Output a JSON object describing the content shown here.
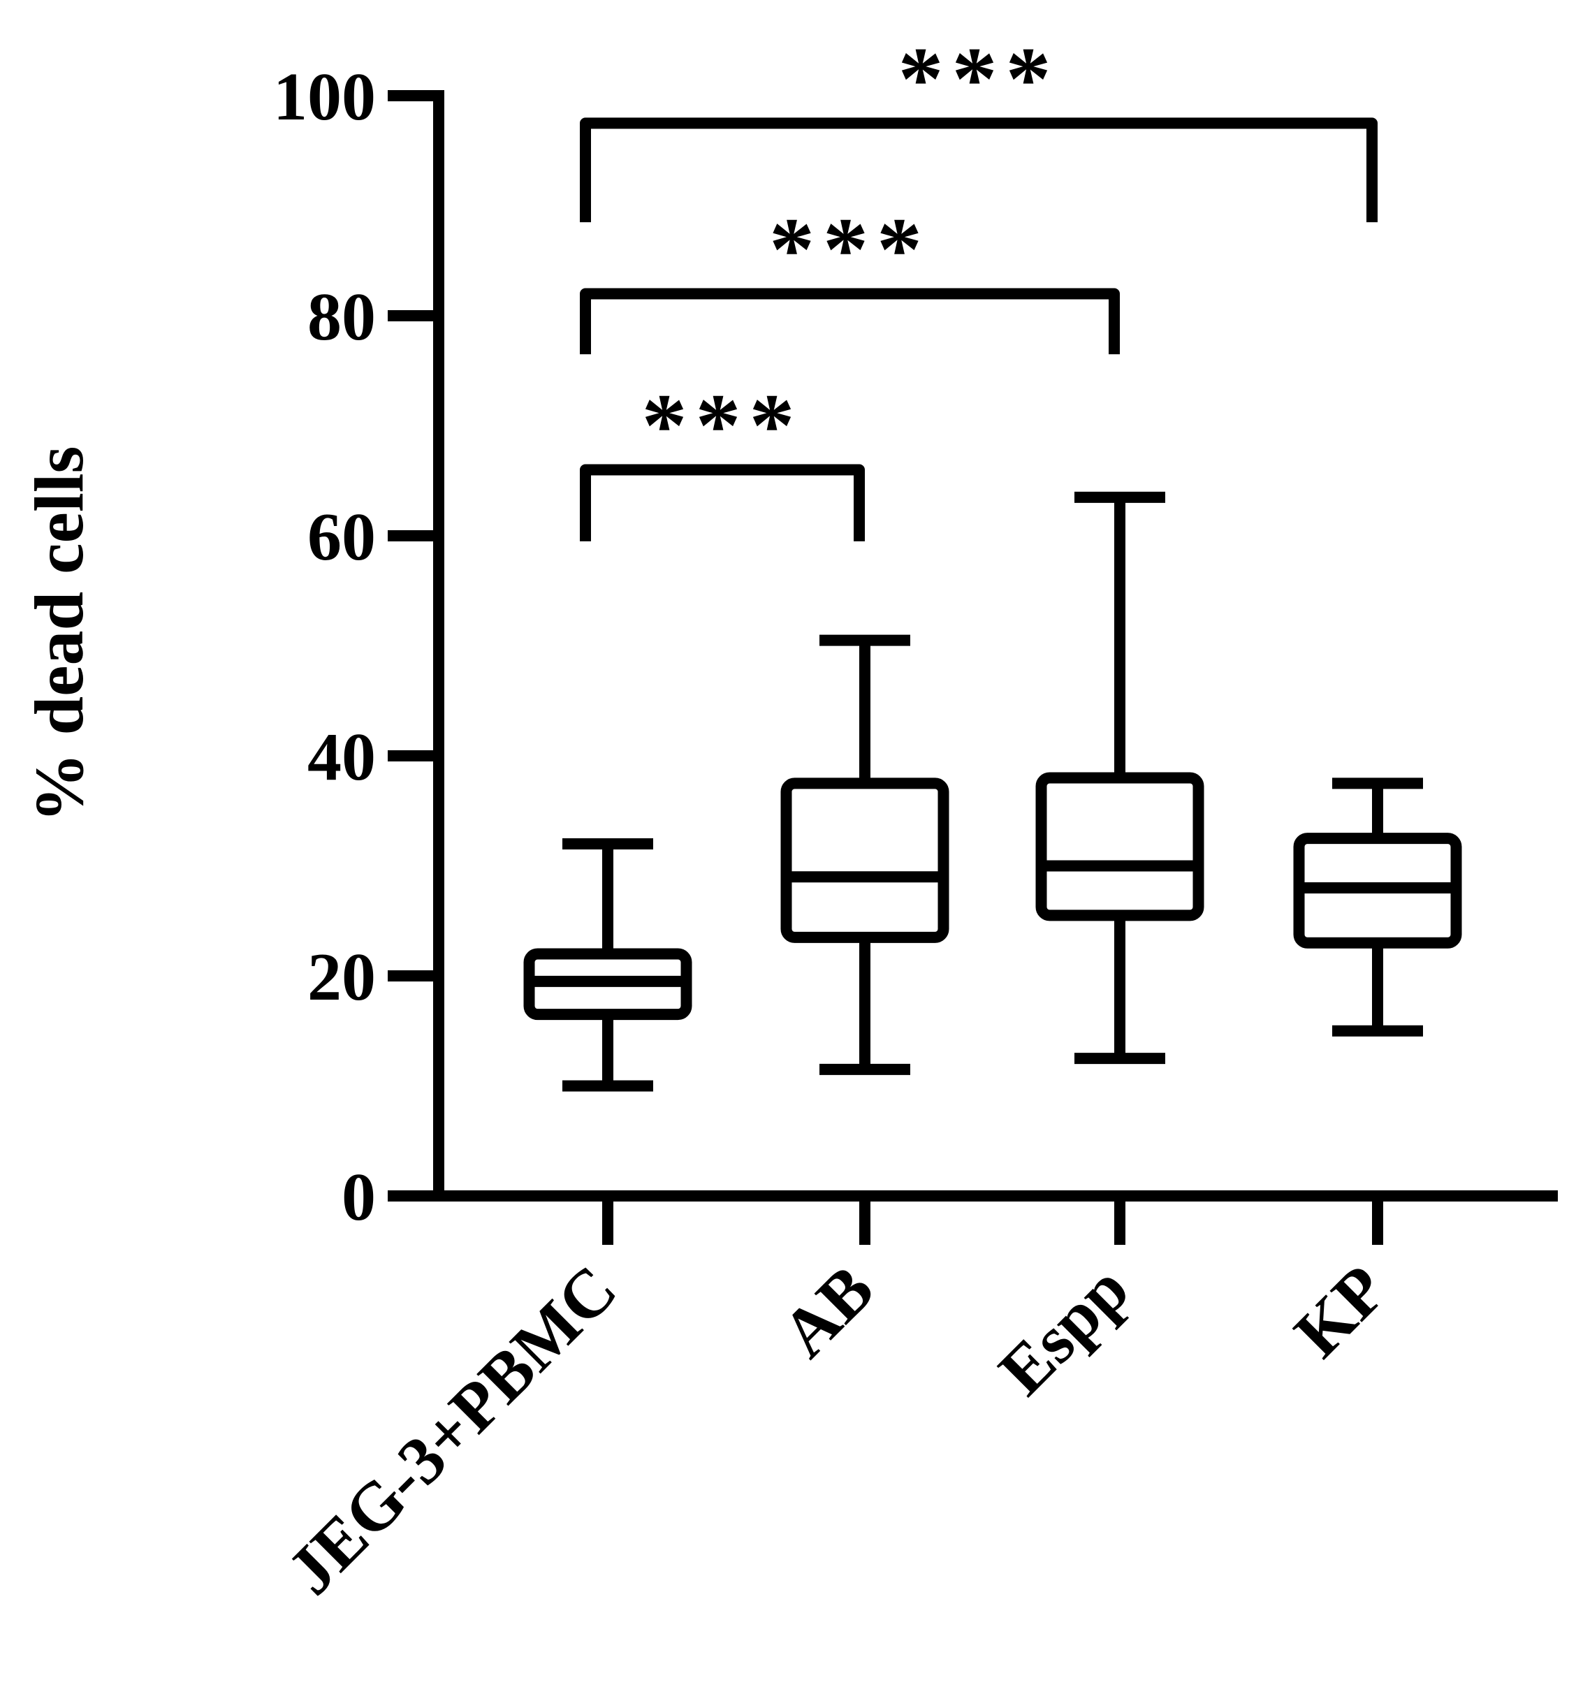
{
  "chart_data": {
    "type": "box",
    "title": "",
    "xlabel": "",
    "ylabel": "% dead cells",
    "ylim": [
      0,
      100
    ],
    "yticks": [
      "0",
      "20",
      "40",
      "60",
      "80",
      "100"
    ],
    "categories": [
      "JEG-3+PBMC",
      "AB",
      "Espp",
      "KP"
    ],
    "boxes": [
      {
        "category": "JEG-3+PBMC",
        "min": 10,
        "q1": 16.5,
        "median": 19.5,
        "q3": 22,
        "max": 32
      },
      {
        "category": "AB",
        "min": 11.5,
        "q1": 23.5,
        "median": 29,
        "q3": 37.5,
        "max": 50.5
      },
      {
        "category": "Espp",
        "min": 12.5,
        "q1": 25.5,
        "median": 30,
        "q3": 38,
        "max": 63.5
      },
      {
        "category": "KP",
        "min": 15,
        "q1": 23,
        "median": 28,
        "q3": 32.5,
        "max": 37.5
      }
    ],
    "significance": [
      {
        "from": "JEG-3+PBMC",
        "to": "AB",
        "label": "***",
        "y": 66,
        "drop": 59.5
      },
      {
        "from": "JEG-3+PBMC",
        "to": "Espp",
        "label": "***",
        "y": 82,
        "drop": 76.5
      },
      {
        "from": "JEG-3+PBMC",
        "to": "KP",
        "label": "***",
        "y": 97.5,
        "drop": 88.5
      }
    ],
    "grid": false,
    "legend": "none",
    "colors": {
      "stroke": "#000000",
      "fill": "#ffffff",
      "background": "#ffffff"
    }
  }
}
